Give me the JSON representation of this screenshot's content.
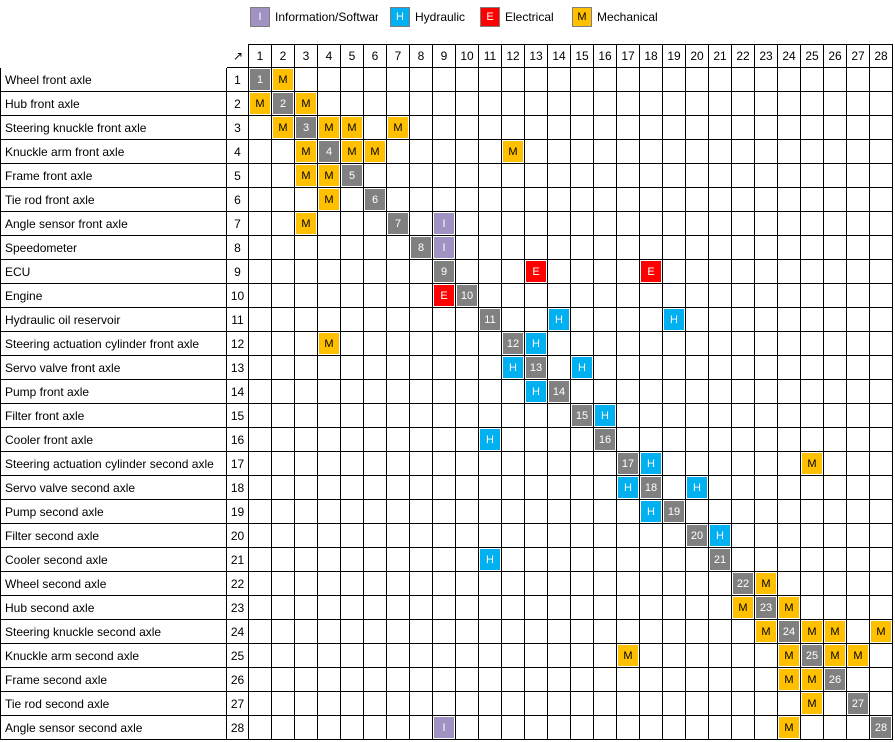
{
  "legend": [
    {
      "key": "I",
      "label": "Information/Software",
      "color": "#a093c3",
      "text_color": "#ffffff"
    },
    {
      "key": "H",
      "label": "Hydraulic",
      "color": "#00b0f0",
      "text_color": "#ffffff"
    },
    {
      "key": "E",
      "label": "Electrical",
      "color": "#ff0000",
      "text_color": "#ffffff"
    },
    {
      "key": "M",
      "label": "Mechanical",
      "color": "#ffc000",
      "text_color": "#000000"
    }
  ],
  "corner_symbol": "↗",
  "diagonal_color": "#808080",
  "elements": [
    "Wheel front axle",
    "Hub front axle",
    "Steering knuckle front axle",
    "Knuckle arm front axle",
    "Frame front axle",
    "Tie rod front axle",
    "Angle sensor front axle",
    "Speedometer",
    "ECU",
    "Engine",
    "Hydraulic oil reservoir",
    "Steering actuation cylinder front axle",
    "Servo valve front axle",
    "Pump front axle",
    "Filter front axle",
    "Cooler front axle",
    "Steering actuation cylinder second axle",
    "Servo valve second axle",
    "Pump second axle",
    "Filter second axle",
    "Cooler second axle",
    "Wheel second axle",
    "Hub second axle",
    "Steering knuckle second axle",
    "Knuckle arm second axle",
    "Frame second axle",
    "Tie rod second axle",
    "Angle sensor second axle"
  ],
  "dependencies": [
    {
      "row": 1,
      "col": 2,
      "type": "M"
    },
    {
      "row": 2,
      "col": 1,
      "type": "M"
    },
    {
      "row": 2,
      "col": 3,
      "type": "M"
    },
    {
      "row": 3,
      "col": 2,
      "type": "M"
    },
    {
      "row": 3,
      "col": 4,
      "type": "M"
    },
    {
      "row": 3,
      "col": 5,
      "type": "M"
    },
    {
      "row": 3,
      "col": 7,
      "type": "M"
    },
    {
      "row": 4,
      "col": 3,
      "type": "M"
    },
    {
      "row": 4,
      "col": 5,
      "type": "M"
    },
    {
      "row": 4,
      "col": 6,
      "type": "M"
    },
    {
      "row": 4,
      "col": 12,
      "type": "M"
    },
    {
      "row": 5,
      "col": 3,
      "type": "M"
    },
    {
      "row": 5,
      "col": 4,
      "type": "M"
    },
    {
      "row": 6,
      "col": 4,
      "type": "M"
    },
    {
      "row": 7,
      "col": 3,
      "type": "M"
    },
    {
      "row": 7,
      "col": 9,
      "type": "I"
    },
    {
      "row": 8,
      "col": 9,
      "type": "I"
    },
    {
      "row": 9,
      "col": 13,
      "type": "E"
    },
    {
      "row": 9,
      "col": 18,
      "type": "E"
    },
    {
      "row": 10,
      "col": 9,
      "type": "E"
    },
    {
      "row": 11,
      "col": 14,
      "type": "H"
    },
    {
      "row": 11,
      "col": 19,
      "type": "H"
    },
    {
      "row": 12,
      "col": 4,
      "type": "M"
    },
    {
      "row": 12,
      "col": 13,
      "type": "H"
    },
    {
      "row": 13,
      "col": 12,
      "type": "H"
    },
    {
      "row": 13,
      "col": 15,
      "type": "H"
    },
    {
      "row": 14,
      "col": 13,
      "type": "H"
    },
    {
      "row": 15,
      "col": 16,
      "type": "H"
    },
    {
      "row": 16,
      "col": 11,
      "type": "H"
    },
    {
      "row": 17,
      "col": 18,
      "type": "H"
    },
    {
      "row": 17,
      "col": 25,
      "type": "M"
    },
    {
      "row": 18,
      "col": 17,
      "type": "H"
    },
    {
      "row": 18,
      "col": 20,
      "type": "H"
    },
    {
      "row": 19,
      "col": 18,
      "type": "H"
    },
    {
      "row": 20,
      "col": 21,
      "type": "H"
    },
    {
      "row": 21,
      "col": 11,
      "type": "H"
    },
    {
      "row": 22,
      "col": 23,
      "type": "M"
    },
    {
      "row": 23,
      "col": 22,
      "type": "M"
    },
    {
      "row": 23,
      "col": 24,
      "type": "M"
    },
    {
      "row": 24,
      "col": 23,
      "type": "M"
    },
    {
      "row": 24,
      "col": 25,
      "type": "M"
    },
    {
      "row": 24,
      "col": 26,
      "type": "M"
    },
    {
      "row": 24,
      "col": 28,
      "type": "M"
    },
    {
      "row": 25,
      "col": 17,
      "type": "M"
    },
    {
      "row": 25,
      "col": 24,
      "type": "M"
    },
    {
      "row": 25,
      "col": 26,
      "type": "M"
    },
    {
      "row": 25,
      "col": 27,
      "type": "M"
    },
    {
      "row": 26,
      "col": 24,
      "type": "M"
    },
    {
      "row": 26,
      "col": 25,
      "type": "M"
    },
    {
      "row": 27,
      "col": 25,
      "type": "M"
    },
    {
      "row": 28,
      "col": 9,
      "type": "I"
    },
    {
      "row": 28,
      "col": 24,
      "type": "M"
    }
  ]
}
